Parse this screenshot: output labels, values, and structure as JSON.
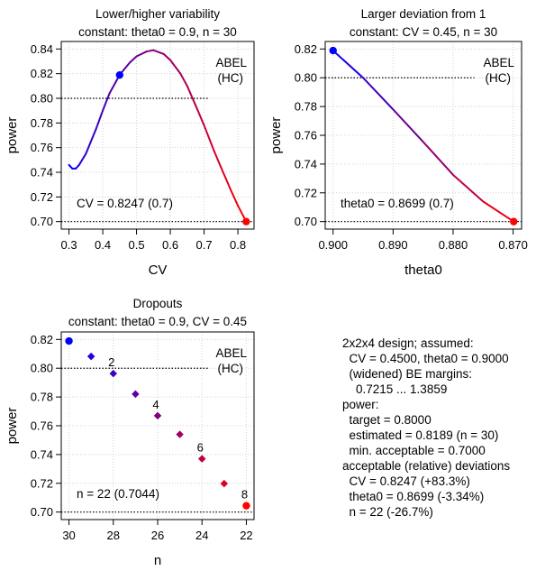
{
  "chart_data": [
    {
      "type": "line",
      "title": "Lower/higher variability",
      "subtitle": "constant: theta0 = 0.9, n = 30",
      "xlabel": "CV",
      "ylabel": "power",
      "xlim": [
        0.3,
        0.825
      ],
      "ylim": [
        0.7,
        0.84
      ],
      "xticks": [
        "0.3",
        "0.4",
        "0.5",
        "0.6",
        "0.7",
        "0.8"
      ],
      "yticks": [
        "0.70",
        "0.72",
        "0.74",
        "0.76",
        "0.78",
        "0.80",
        "0.82",
        "0.84"
      ],
      "legend": [
        "ABEL",
        "(HC)"
      ],
      "annotation": "CV = 0.8247 (0.7)",
      "reference_line": 0.8,
      "grid": true,
      "series": [
        {
          "x": [
            0.3,
            0.31,
            0.32,
            0.33,
            0.35,
            0.38,
            0.4,
            0.42,
            0.45,
            0.48,
            0.5,
            0.53,
            0.55,
            0.58,
            0.6,
            0.63,
            0.65,
            0.68,
            0.7,
            0.73,
            0.75,
            0.78,
            0.8,
            0.8247
          ],
          "y": [
            0.746,
            0.743,
            0.743,
            0.746,
            0.755,
            0.775,
            0.79,
            0.804,
            0.819,
            0.829,
            0.834,
            0.838,
            0.839,
            0.836,
            0.831,
            0.82,
            0.81,
            0.791,
            0.778,
            0.757,
            0.744,
            0.725,
            0.713,
            0.7
          ]
        }
      ],
      "points": [
        {
          "x": 0.45,
          "y": 0.8189,
          "color": "#0000ff"
        },
        {
          "x": 0.8247,
          "y": 0.7,
          "color": "#ff0000"
        }
      ]
    },
    {
      "type": "line",
      "title": "Larger deviation from 1",
      "subtitle": "constant: CV = 0.45, n = 30",
      "xlabel": "theta0",
      "ylabel": "power",
      "xlim": [
        0.9,
        0.8699
      ],
      "ylim": [
        0.7,
        0.82
      ],
      "xticks": [
        "0.900",
        "0.890",
        "0.880",
        "0.870"
      ],
      "yticks": [
        "0.70",
        "0.72",
        "0.74",
        "0.76",
        "0.78",
        "0.80",
        "0.82"
      ],
      "legend": [
        "ABEL",
        "(HC)"
      ],
      "annotation": "theta0 = 0.8699 (0.7)",
      "reference_line": 0.8,
      "grid": true,
      "series": [
        {
          "x": [
            0.9,
            0.895,
            0.89,
            0.885,
            0.88,
            0.875,
            0.8699
          ],
          "y": [
            0.8189,
            0.8,
            0.778,
            0.7555,
            0.7325,
            0.714,
            0.7
          ]
        }
      ],
      "points": [
        {
          "x": 0.9,
          "y": 0.8189,
          "color": "#0000ff"
        },
        {
          "x": 0.8699,
          "y": 0.7,
          "color": "#ff0000"
        }
      ]
    },
    {
      "type": "scatter",
      "title": "Dropouts",
      "subtitle": "constant: theta0 = 0.9, CV = 0.45",
      "xlabel": "n",
      "ylabel": "power",
      "xlim": [
        30,
        22
      ],
      "ylim": [
        0.7,
        0.82
      ],
      "xticks": [
        "30",
        "28",
        "26",
        "24",
        "22"
      ],
      "yticks": [
        "0.70",
        "0.72",
        "0.74",
        "0.76",
        "0.78",
        "0.80",
        "0.82"
      ],
      "legend": [
        "ABEL",
        "(HC)"
      ],
      "annotation": "n = 22 (0.7044)",
      "reference_line": 0.8,
      "grid": true,
      "series": [
        {
          "x": [
            30,
            29,
            28,
            27,
            26,
            25,
            24,
            23,
            22
          ],
          "y": [
            0.8189,
            0.8082,
            0.7963,
            0.782,
            0.767,
            0.754,
            0.737,
            0.7198,
            0.7044
          ]
        }
      ],
      "point_labels": [
        {
          "x": 28,
          "y": 0.7963,
          "text": "2"
        },
        {
          "x": 26,
          "y": 0.767,
          "text": "4"
        },
        {
          "x": 24,
          "y": 0.737,
          "text": "6"
        },
        {
          "x": 22,
          "y": 0.7044,
          "text": "8"
        }
      ]
    }
  ],
  "summary": {
    "lines": [
      "2x2x4 design; assumed:",
      "  CV = 0.4500, theta0 = 0.9000",
      "  (widened) BE margins:",
      "    0.7215 ... 1.3859",
      "power:",
      "  target = 0.8000",
      "  estimated = 0.8189 (n = 30)",
      "  min. acceptable = 0.7000",
      "acceptable (relative) deviations",
      "  CV = 0.8247 (+83.3%)",
      "  theta0 = 0.8699 (-3.34%)",
      "  n = 22 (-26.7%)"
    ]
  },
  "colors": {
    "start": "#0000ff",
    "end": "#ff0000",
    "grid": "#d3d3d3"
  }
}
